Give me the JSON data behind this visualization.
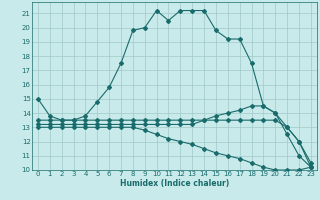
{
  "title": "",
  "xlabel": "Humidex (Indice chaleur)",
  "bg_color": "#c8eaea",
  "grid_color": "#a0c8c8",
  "line_color": "#1a6b6b",
  "xlim": [
    -0.5,
    23.5
  ],
  "ylim": [
    10,
    21.8
  ],
  "yticks": [
    10,
    11,
    12,
    13,
    14,
    15,
    16,
    17,
    18,
    19,
    20,
    21
  ],
  "xticks": [
    0,
    1,
    2,
    3,
    4,
    5,
    6,
    7,
    8,
    9,
    10,
    11,
    12,
    13,
    14,
    15,
    16,
    17,
    18,
    19,
    20,
    21,
    22,
    23
  ],
  "curve1_x": [
    0,
    1,
    2,
    3,
    4,
    5,
    6,
    7,
    8,
    9,
    10,
    11,
    12,
    13,
    14,
    15,
    16,
    17,
    18,
    19,
    20,
    21,
    22,
    23
  ],
  "curve1_y": [
    15.0,
    13.8,
    13.5,
    13.5,
    13.8,
    14.8,
    15.8,
    17.5,
    19.8,
    20.0,
    21.2,
    20.5,
    21.2,
    21.2,
    21.2,
    19.8,
    19.2,
    19.2,
    17.5,
    14.5,
    14.0,
    12.5,
    11.0,
    10.2
  ],
  "curve2_x": [
    0,
    1,
    2,
    3,
    4,
    5,
    6,
    7,
    8,
    9,
    10,
    11,
    12,
    13,
    14,
    15,
    16,
    17,
    18,
    19,
    20,
    21,
    22,
    23
  ],
  "curve2_y": [
    13.5,
    13.5,
    13.5,
    13.5,
    13.5,
    13.5,
    13.5,
    13.5,
    13.5,
    13.5,
    13.5,
    13.5,
    13.5,
    13.5,
    13.5,
    13.8,
    14.0,
    14.2,
    14.5,
    14.5,
    14.0,
    13.0,
    12.0,
    10.2
  ],
  "curve3_x": [
    0,
    1,
    2,
    3,
    4,
    5,
    6,
    7,
    8,
    9,
    10,
    11,
    12,
    13,
    14,
    15,
    16,
    17,
    18,
    19,
    20,
    21,
    22,
    23
  ],
  "curve3_y": [
    13.2,
    13.2,
    13.2,
    13.2,
    13.2,
    13.2,
    13.2,
    13.2,
    13.2,
    13.2,
    13.2,
    13.2,
    13.2,
    13.2,
    13.5,
    13.5,
    13.5,
    13.5,
    13.5,
    13.5,
    13.5,
    13.0,
    12.0,
    10.5
  ],
  "curve4_x": [
    0,
    1,
    2,
    3,
    4,
    5,
    6,
    7,
    8,
    9,
    10,
    11,
    12,
    13,
    14,
    15,
    16,
    17,
    18,
    19,
    20,
    21,
    22,
    23
  ],
  "curve4_y": [
    13.0,
    13.0,
    13.0,
    13.0,
    13.0,
    13.0,
    13.0,
    13.0,
    13.0,
    12.8,
    12.5,
    12.2,
    12.0,
    11.8,
    11.5,
    11.2,
    11.0,
    10.8,
    10.5,
    10.2,
    10.0,
    10.0,
    10.0,
    10.2
  ]
}
